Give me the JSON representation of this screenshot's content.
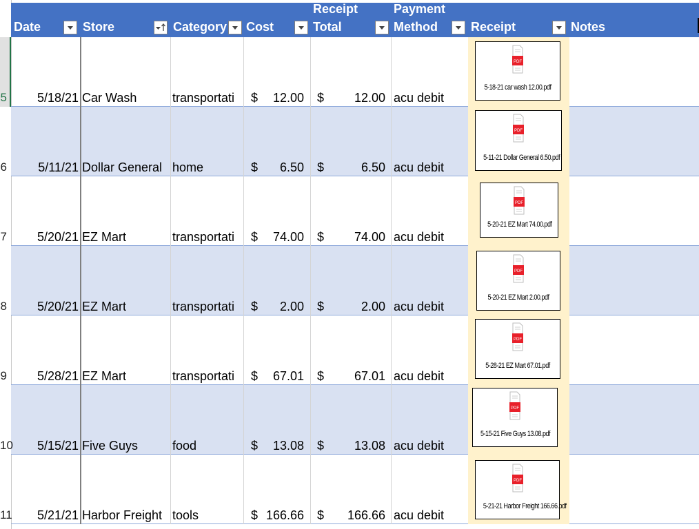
{
  "columns": [
    {
      "label": "Date",
      "filter_icon": "filter-dropdown-icon"
    },
    {
      "label": "Store",
      "filter_icon": "sort-ascending-icon"
    },
    {
      "label": "Category",
      "filter_icon": "filter-dropdown-icon"
    },
    {
      "label": "Cost",
      "filter_icon": "filter-dropdown-icon"
    },
    {
      "label_line1": "Receipt",
      "label_line2": "Total",
      "filter_icon": "filter-dropdown-icon"
    },
    {
      "label_line1": "Payment",
      "label_line2": "Method",
      "filter_icon": "filter-dropdown-icon"
    },
    {
      "label": "Receipt",
      "filter_icon": "filter-dropdown-icon"
    },
    {
      "label": "Notes"
    }
  ],
  "row_numbers": [
    "5",
    "6",
    "7",
    "8",
    "9",
    "10",
    "11"
  ],
  "rows": [
    {
      "date": "5/18/21",
      "store": "Car Wash",
      "category": "transportati",
      "cost_sym": "$",
      "cost": "12.00",
      "total_sym": "$",
      "total": "12.00",
      "payment": "acu debit",
      "receipt_file": "5-18-21 car wash 12.00.pdf",
      "notes": ""
    },
    {
      "date": "5/11/21",
      "store": "Dollar General",
      "category": "home",
      "cost_sym": "$",
      "cost": "6.50",
      "total_sym": "$",
      "total": "6.50",
      "payment": "acu debit",
      "receipt_file": "5-11-21 Dollar General 6.50.pdf",
      "notes": ""
    },
    {
      "date": "5/20/21",
      "store": "EZ Mart",
      "category": "transportati",
      "cost_sym": "$",
      "cost": "74.00",
      "total_sym": "$",
      "total": "74.00",
      "payment": "acu debit",
      "receipt_file": "5-20-21 EZ Mart 74.00.pdf",
      "notes": ""
    },
    {
      "date": "5/20/21",
      "store": "EZ Mart",
      "category": "transportati",
      "cost_sym": "$",
      "cost": "2.00",
      "total_sym": "$",
      "total": "2.00",
      "payment": "acu debit",
      "receipt_file": "5-20-21 EZ Mart 2.00.pdf",
      "notes": ""
    },
    {
      "date": "5/28/21",
      "store": "EZ Mart",
      "category": "transportati",
      "cost_sym": "$",
      "cost": "67.01",
      "total_sym": "$",
      "total": "67.01",
      "payment": "acu debit",
      "receipt_file": "5-28-21 EZ Mart 67.01.pdf",
      "notes": ""
    },
    {
      "date": "5/15/21",
      "store": "Five Guys",
      "category": "food",
      "cost_sym": "$",
      "cost": "13.08",
      "total_sym": "$",
      "total": "13.08",
      "payment": "acu debit",
      "receipt_file": "5-15-21 Five Guys 13.08.pdf",
      "notes": ""
    },
    {
      "date": "5/21/21",
      "store": "Harbor Freight",
      "category": "tools",
      "cost_sym": "$",
      "cost": "166.66",
      "total_sym": "$",
      "total": "166.66",
      "payment": "acu debit",
      "receipt_file": "5-21-21 Harbor Freight 166.66.pdf",
      "notes": ""
    }
  ],
  "pdf_icon_label": "PDF",
  "colors": {
    "header": "#4472c4",
    "band": "#d9e1f2",
    "receipt_cell": "#fff2cc",
    "pdf_red": "#e8202a"
  }
}
